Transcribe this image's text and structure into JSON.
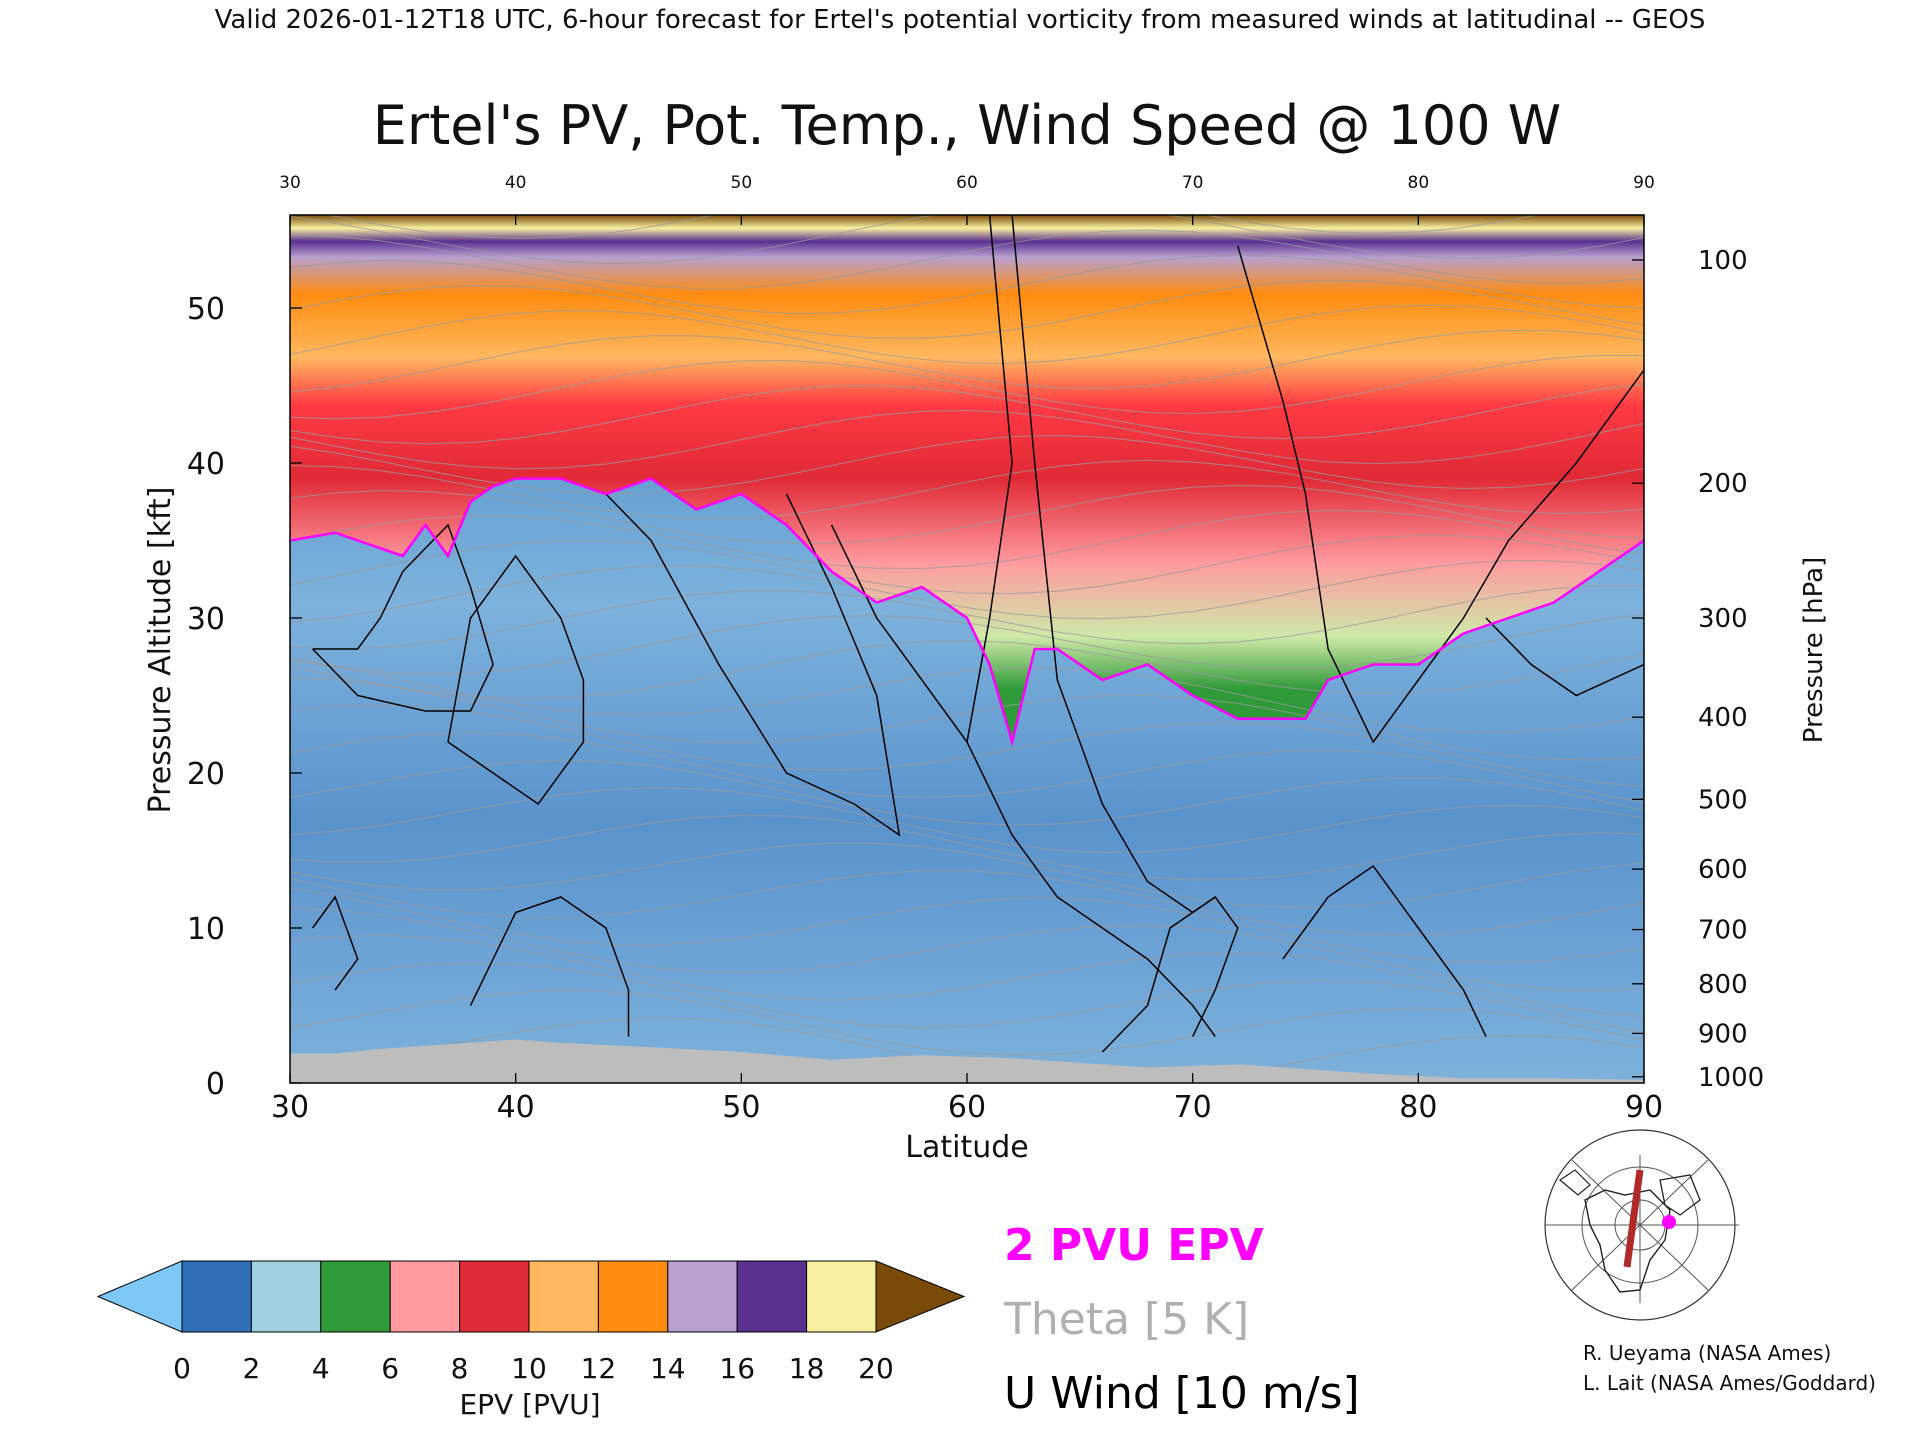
{
  "header": "Valid 2026-01-12T18 UTC, 6-hour forecast for Ertel's potential vorticity from measured winds at latitudinal -- GEOS",
  "chart_data": {
    "type": "heatmap",
    "title": "Ertel's PV, Pot. Temp., Wind Speed @ 100 W",
    "xlabel": "Latitude",
    "ylabel": "Pressure Altitude [kft]",
    "y2label": "Pressure [hPa]",
    "xlim": [
      30,
      90
    ],
    "ylim": [
      0,
      56
    ],
    "x_ticks": [
      "30",
      "40",
      "50",
      "60",
      "70",
      "80",
      "90"
    ],
    "top_ticks": [
      "30",
      "40",
      "50",
      "60",
      "70",
      "80",
      "90"
    ],
    "y_ticks": [
      "0",
      "10",
      "20",
      "30",
      "40",
      "50"
    ],
    "pressure_ticks": [
      {
        "label": "100",
        "alt": 53.1
      },
      {
        "label": "200",
        "alt": 38.7
      },
      {
        "label": "300",
        "alt": 30.0
      },
      {
        "label": "400",
        "alt": 23.6
      },
      {
        "label": "500",
        "alt": 18.3
      },
      {
        "label": "600",
        "alt": 13.8
      },
      {
        "label": "700",
        "alt": 9.9
      },
      {
        "label": "800",
        "alt": 6.4
      },
      {
        "label": "900",
        "alt": 3.2
      },
      {
        "label": "1000",
        "alt": 0.4
      }
    ],
    "pv2_tropopause": {
      "lat": [
        30,
        32,
        34,
        35,
        36,
        37,
        38,
        39,
        40,
        42,
        44,
        46,
        48,
        50,
        52,
        54,
        56,
        58,
        60,
        61,
        62,
        63,
        64,
        66,
        68,
        70,
        72,
        74,
        75,
        76,
        78,
        80,
        82,
        84,
        86,
        88,
        90
      ],
      "kft": [
        35,
        35.5,
        34.5,
        34,
        36,
        34,
        37.5,
        38.5,
        39,
        39,
        38,
        39,
        37,
        38,
        36,
        33,
        31,
        32,
        30,
        27,
        22,
        28,
        28,
        26,
        27,
        25,
        23.5,
        23.5,
        23.5,
        26,
        27,
        27,
        29,
        30,
        31,
        33,
        35
      ]
    },
    "epv_colorbar": {
      "label": "EPV [PVU]",
      "ticks": [
        "0",
        "2",
        "4",
        "6",
        "8",
        "10",
        "12",
        "14",
        "16",
        "18",
        "20"
      ],
      "colors": [
        "#2f6fb8",
        "#9fd0e0",
        "#2f9a3a",
        "#ff9aa0",
        "#e02a35",
        "#ffb860",
        "#ff8c10",
        "#b8a0d0",
        "#5a3090",
        "#f8f0a0"
      ],
      "under": "#7ec8f8",
      "over": "#7a4a08"
    },
    "legend": [
      {
        "text": "2 PVU EPV",
        "color": "#ff00ff"
      },
      {
        "text": "Theta [5 K]",
        "color": "#b0b0b0"
      },
      {
        "text": "U Wind [10 m/s]",
        "color": "#000000"
      }
    ]
  },
  "credits": [
    "R. Ueyama (NASA Ames)",
    "L. Lait (NASA Ames/Goddard)"
  ]
}
